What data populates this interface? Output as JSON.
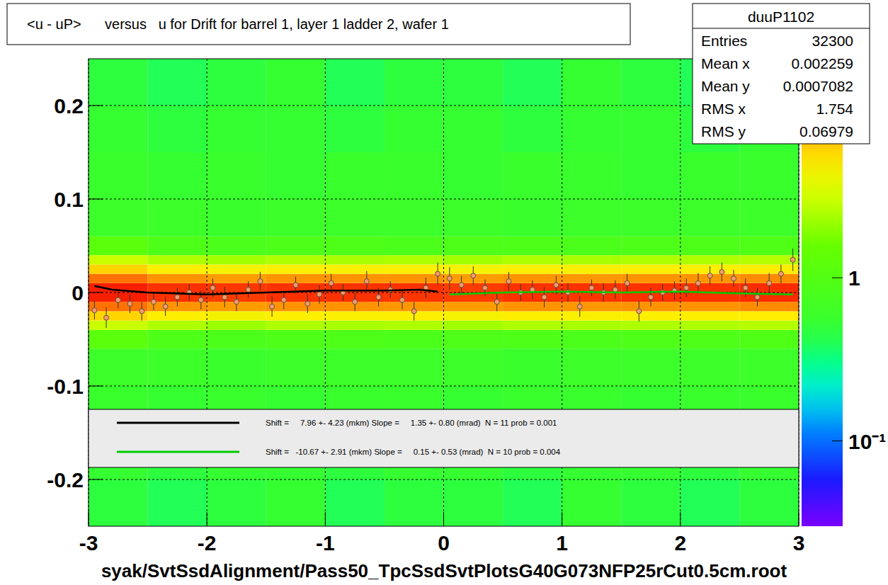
{
  "chart_data": {
    "type": "heatmap",
    "title": "<u - uP>      versus   u for Drift for barrel 1, layer 1 ladder 2, wafer 1",
    "footer": "syak/SvtSsdAlignment/Pass50_TpcSsdSvtPlotsG40G073NFP25rCut0.5cm.root",
    "xlim": [
      -3,
      3
    ],
    "ylim": [
      -0.25,
      0.25
    ],
    "xticks": [
      -3,
      -2,
      -1,
      0,
      1,
      2,
      3
    ],
    "yticks": [
      -0.2,
      -0.1,
      0,
      0.1,
      0.2
    ],
    "grid": true,
    "legend": "bottom",
    "stats": {
      "title": "duuP1102",
      "rows": [
        {
          "label": "Entries",
          "value": 32300
        },
        {
          "label": "Mean x",
          "value": 0.002259
        },
        {
          "label": "Mean y",
          "value": 0.0007082
        },
        {
          "label": "RMS x",
          "value": 1.754
        },
        {
          "label": "RMS y",
          "value": 0.06979
        }
      ]
    },
    "colorbar": {
      "range": [
        0.03,
        22
      ],
      "log": true,
      "ticks": [
        {
          "value": 0.1,
          "label": "10⁻¹"
        },
        {
          "value": 1,
          "label": "1"
        }
      ]
    },
    "x_edges": [
      -3,
      -2.5,
      -2,
      -1.5,
      -1,
      -0.5,
      0,
      0.5,
      1,
      1.5,
      2,
      2.5,
      3
    ],
    "y_edges": [
      -0.25,
      -0.2,
      -0.15,
      -0.1,
      -0.06,
      -0.04,
      -0.03,
      -0.02,
      -0.01,
      0,
      0.01,
      0.02,
      0.03,
      0.04,
      0.06,
      0.1,
      0.15,
      0.2,
      0.25
    ],
    "cells": [
      [
        0.45,
        0.4,
        0.45,
        0.5,
        0.4,
        0.45,
        0.45,
        0.4,
        0.5,
        0.45,
        0.4,
        0.45
      ],
      [
        0.5,
        0.45,
        0.5,
        0.5,
        0.45,
        0.5,
        0.5,
        0.45,
        0.5,
        0.5,
        0.45,
        0.5
      ],
      [
        0.55,
        0.5,
        0.55,
        0.5,
        0.55,
        0.55,
        0.5,
        0.55,
        0.55,
        0.5,
        0.55,
        0.55
      ],
      [
        0.6,
        0.6,
        0.55,
        0.6,
        0.6,
        0.6,
        0.6,
        0.55,
        0.6,
        0.6,
        0.6,
        0.6
      ],
      [
        1.2,
        0.9,
        0.85,
        0.9,
        0.9,
        0.85,
        0.9,
        0.9,
        0.85,
        0.9,
        0.9,
        0.95
      ],
      [
        3,
        2.5,
        2.2,
        2.5,
        2.4,
        2.5,
        2.3,
        2.5,
        2.4,
        2.5,
        2.5,
        2.6
      ],
      [
        6,
        5,
        4.5,
        5,
        4.8,
        5,
        4.6,
        5,
        4.8,
        5,
        5,
        5.2
      ],
      [
        11,
        9,
        8.5,
        9,
        9,
        8.8,
        8.5,
        9,
        8.8,
        9,
        9,
        9.5
      ],
      [
        18,
        16,
        15,
        16,
        16,
        15.5,
        15,
        16,
        15.5,
        16,
        16,
        16.5
      ],
      [
        18,
        16,
        15.5,
        16,
        16,
        16,
        15,
        16,
        16,
        16,
        16,
        16.5
      ],
      [
        11,
        9,
        8.5,
        9,
        9,
        9,
        8.5,
        9,
        8.8,
        9,
        9,
        9.5
      ],
      [
        6,
        5,
        4.6,
        5,
        4.8,
        5,
        4.6,
        5,
        4.8,
        5,
        5,
        5.2
      ],
      [
        3,
        2.5,
        2.3,
        2.5,
        2.4,
        2.5,
        2.3,
        2.5,
        2.4,
        2.5,
        2.5,
        2.6
      ],
      [
        1.2,
        0.9,
        0.85,
        0.9,
        0.9,
        0.85,
        0.9,
        0.9,
        0.85,
        0.9,
        0.9,
        0.95
      ],
      [
        0.6,
        0.6,
        0.55,
        0.6,
        0.6,
        0.6,
        0.6,
        0.55,
        0.6,
        0.6,
        0.6,
        0.6
      ],
      [
        0.55,
        0.5,
        0.55,
        0.5,
        0.55,
        0.55,
        0.5,
        0.55,
        0.55,
        0.5,
        0.55,
        0.55
      ],
      [
        0.5,
        0.45,
        0.5,
        0.5,
        0.45,
        0.5,
        0.5,
        0.45,
        0.5,
        0.5,
        0.45,
        0.5
      ],
      [
        0.45,
        0.4,
        0.45,
        0.5,
        0.4,
        0.45,
        0.45,
        0.4,
        0.5,
        0.45,
        0.4,
        0.45
      ]
    ],
    "profile": {
      "x": [
        -2.95,
        -2.85,
        -2.75,
        -2.65,
        -2.55,
        -2.45,
        -2.35,
        -2.25,
        -2.15,
        -2.05,
        -1.95,
        -1.85,
        -1.75,
        -1.65,
        -1.55,
        -1.45,
        -1.35,
        -1.25,
        -1.15,
        -1.05,
        -0.95,
        -0.85,
        -0.75,
        -0.65,
        -0.55,
        -0.45,
        -0.35,
        -0.25,
        -0.15,
        -0.05,
        0.05,
        0.15,
        0.25,
        0.35,
        0.45,
        0.55,
        0.65,
        0.75,
        0.85,
        0.95,
        1.05,
        1.15,
        1.25,
        1.35,
        1.45,
        1.55,
        1.65,
        1.75,
        1.85,
        1.95,
        2.05,
        2.15,
        2.25,
        2.35,
        2.45,
        2.55,
        2.65,
        2.75,
        2.85,
        2.95
      ],
      "values": [
        -0.019,
        -0.027,
        -0.008,
        -0.012,
        -0.02,
        -0.01,
        -0.015,
        -0.005,
        0.0,
        -0.008,
        0.005,
        -0.005,
        -0.01,
        0.003,
        0.012,
        -0.015,
        -0.008,
        0.008,
        -0.012,
        -0.002,
        0.01,
        0.0,
        -0.01,
        0.012,
        -0.005,
        0.003,
        -0.008,
        -0.02,
        0.005,
        0.02,
        0.015,
        0.008,
        0.018,
        0.005,
        -0.01,
        0.012,
        0.0,
        0.003,
        -0.005,
        0.008,
        0.0,
        -0.015,
        0.005,
        0.0,
        0.003,
        0.01,
        -0.02,
        -0.005,
        0.0,
        0.002,
        0.005,
        0.01,
        0.018,
        0.022,
        0.015,
        0.005,
        -0.005,
        0.01,
        0.02,
        0.035
      ],
      "errors": [
        0.01,
        0.011,
        0.009,
        0.01,
        0.01,
        0.009,
        0.01,
        0.01,
        0.009,
        0.01,
        0.01,
        0.011,
        0.01,
        0.009,
        0.01,
        0.011,
        0.01,
        0.009,
        0.01,
        0.01,
        0.01,
        0.009,
        0.01,
        0.011,
        0.01,
        0.009,
        0.01,
        0.01,
        0.011,
        0.012,
        0.012,
        0.01,
        0.01,
        0.009,
        0.01,
        0.01,
        0.009,
        0.01,
        0.011,
        0.01,
        0.01,
        0.011,
        0.009,
        0.01,
        0.01,
        0.01,
        0.011,
        0.01,
        0.009,
        0.01,
        0.01,
        0.011,
        0.01,
        0.01,
        0.009,
        0.01,
        0.01,
        0.011,
        0.01,
        0.012
      ]
    },
    "series": [
      {
        "name": "Shift =     7.96 +- 4.23 (mkm) Slope =     1.35 +- 0.80 (mrad)  N = 11 prob = 0.001",
        "color": "#000000",
        "x": [
          -2.95,
          -2.8,
          -2.5,
          -2.0,
          -1.5,
          -1.0,
          -0.5,
          -0.2,
          -0.05
        ],
        "values": [
          0.007,
          0.003,
          0.0,
          -0.002,
          0.0,
          0.002,
          0.002,
          0.003,
          0.001
        ]
      },
      {
        "name": "Shift =   -10.67 +- 2.91 (mkm) Slope =     0.15 +- 0.53 (mrad)  N = 10 prob = 0.004",
        "color": "#00cc00",
        "x": [
          0.05,
          0.5,
          1.0,
          1.5,
          2.0,
          2.5,
          2.95
        ],
        "values": [
          -0.002,
          0.0,
          0.001,
          0.0,
          0.001,
          -0.001,
          -0.002
        ]
      }
    ]
  }
}
